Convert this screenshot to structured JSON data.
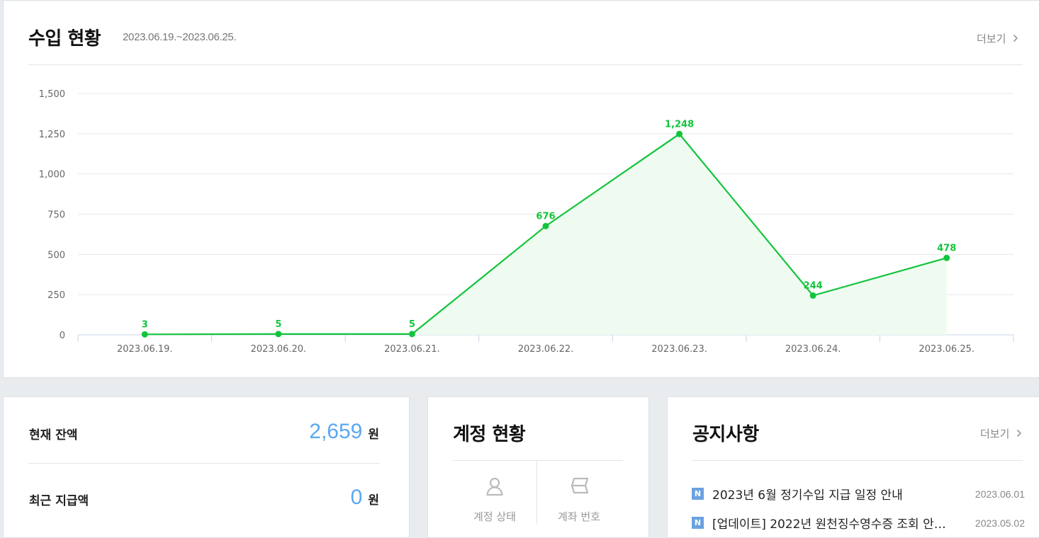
{
  "revenue": {
    "title": "수입 현황",
    "period": "2023.06.19.~2023.06.25.",
    "more": "더보기",
    "chevron_icon": "chevron-right-icon"
  },
  "chart_data": {
    "type": "area",
    "categories": [
      "2023.06.19.",
      "2023.06.20.",
      "2023.06.21.",
      "2023.06.22.",
      "2023.06.23.",
      "2023.06.24.",
      "2023.06.25."
    ],
    "values": [
      3,
      5,
      5,
      676,
      1248,
      244,
      478
    ],
    "value_labels": [
      "3",
      "5",
      "5",
      "676",
      "1,248",
      "244",
      "478"
    ],
    "ylim": [
      0,
      1500
    ],
    "yticks": [
      0,
      250,
      500,
      750,
      1000,
      1250,
      1500
    ],
    "ytick_labels": [
      "0",
      "250",
      "500",
      "750",
      "1,000",
      "1,250",
      "1,500"
    ],
    "grid": true,
    "color": "#13c43c",
    "fill": "#effbf1"
  },
  "balance": {
    "current_label": "현재 잔액",
    "current_value": "2,659",
    "current_unit": "원",
    "recent_label": "최근 지급액",
    "recent_value": "0",
    "recent_unit": "원"
  },
  "account": {
    "title": "계정 현황",
    "status_label": "계정 상태",
    "status_icon": "user-icon",
    "bank_label": "계좌 번호",
    "bank_icon": "bankbook-icon"
  },
  "notice": {
    "title": "공지사항",
    "more": "더보기",
    "items": [
      {
        "badge": "N",
        "title": "2023년 6월 정기수입 지급 일정 안내",
        "date": "2023.06.01"
      },
      {
        "badge": "N",
        "title": "[업데이트] 2022년 원천징수영수증 조회 안…",
        "date": "2023.05.02"
      }
    ]
  },
  "colors": {
    "accent_green": "#13c43c",
    "amount_blue": "#5aa7f0",
    "badge_blue": "#6aa2e0"
  }
}
